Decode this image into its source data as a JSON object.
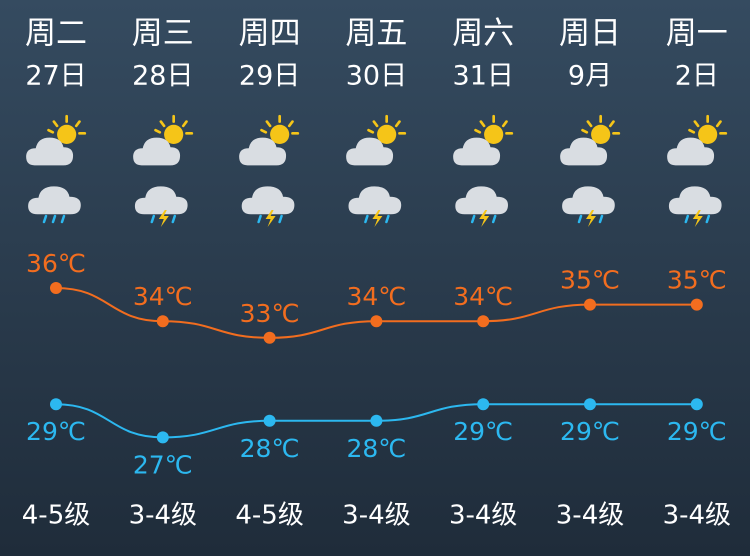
{
  "chart_data": {
    "type": "line",
    "categories": [
      "周二",
      "周三",
      "周四",
      "周五",
      "周六",
      "周日",
      "周一"
    ],
    "dates": [
      "27日",
      "28日",
      "29日",
      "30日",
      "31日",
      "9月",
      "2日"
    ],
    "series": [
      {
        "color": "#f26d1f",
        "values": [
          36,
          34,
          33,
          34,
          34,
          35,
          35
        ],
        "value_labels": [
          "36℃",
          "34℃",
          "33℃",
          "34℃",
          "34℃",
          "35℃",
          "35℃"
        ]
      },
      {
        "color": "#2cb8f0",
        "values": [
          29,
          27,
          28,
          28,
          29,
          29,
          29
        ],
        "value_labels": [
          "29℃",
          "27℃",
          "28℃",
          "28℃",
          "29℃",
          "29℃",
          "29℃"
        ]
      }
    ],
    "wind": [
      "4-5级",
      "3-4级",
      "4-5级",
      "3-4级",
      "3-4级",
      "3-4级",
      "3-4级"
    ]
  }
}
